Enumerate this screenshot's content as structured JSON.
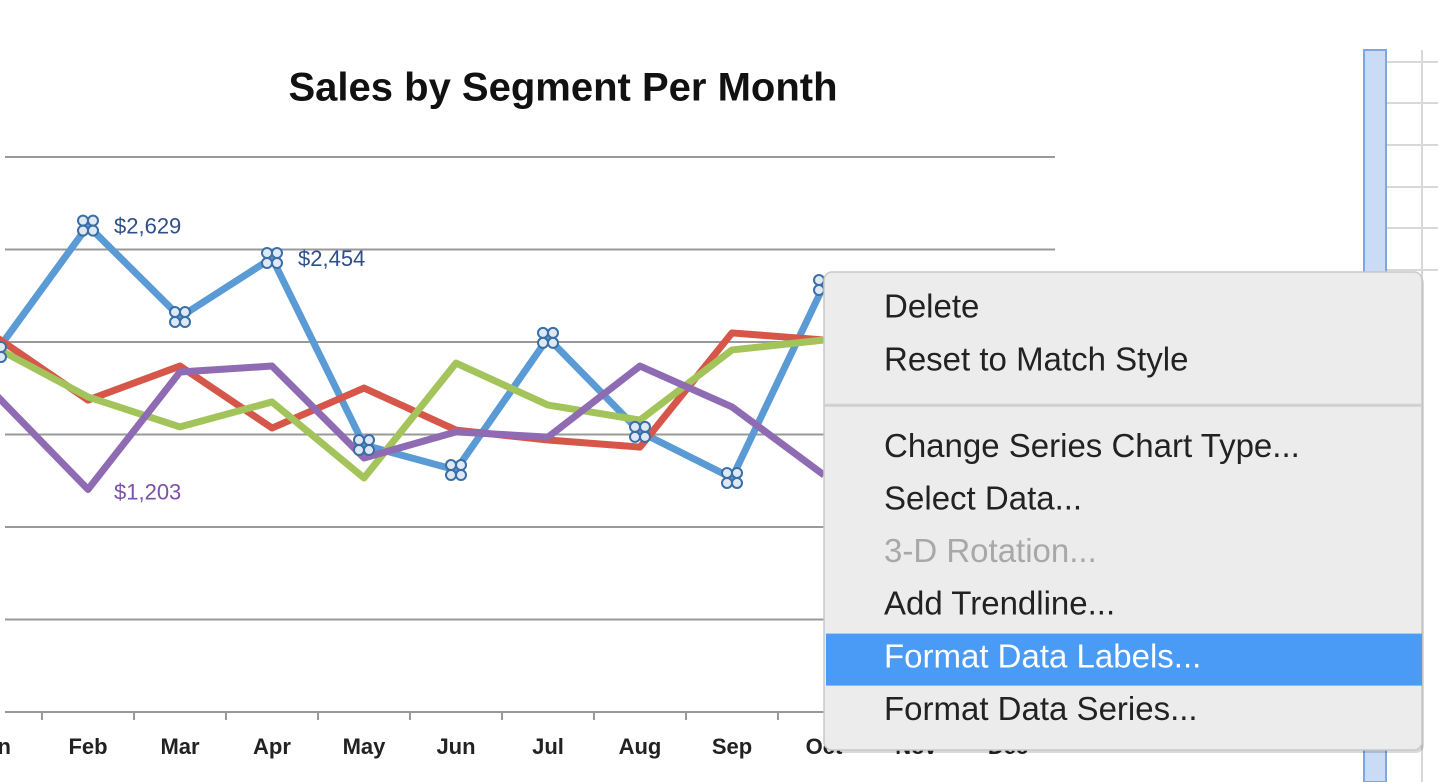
{
  "chart_data": {
    "type": "line",
    "title": "Sales by Segment Per Month",
    "categories": [
      "Jan",
      "Feb",
      "Mar",
      "Apr",
      "May",
      "Jun",
      "Jul",
      "Aug",
      "Sep",
      "Oct",
      "Nov",
      "Dec"
    ],
    "series": [
      {
        "color": "#5b9bd5",
        "values": [
          1946,
          2629,
          2135,
          2454,
          1443,
          1308,
          2022,
          1514,
          1265,
          2308,
          null,
          null
        ],
        "value_labels": [
          null,
          "$2,629",
          null,
          "$2,454",
          null,
          null,
          null,
          null,
          null,
          null,
          null,
          null
        ],
        "label_color": "#2f4f8a",
        "markers": true
      },
      {
        "color": "#d6574a",
        "values": [
          2027,
          1686,
          1870,
          1535,
          1751,
          1524,
          1470,
          1432,
          2049,
          2011,
          null,
          null
        ]
      },
      {
        "color": "#a3c45a",
        "values": [
          1968,
          1703,
          1541,
          1676,
          1265,
          1886,
          1659,
          1578,
          1957,
          2011,
          null,
          null
        ]
      },
      {
        "color": "#8e6bb3",
        "values": [
          1714,
          1203,
          1838,
          1870,
          1373,
          1514,
          1486,
          1870,
          1649,
          1281,
          null,
          null
        ],
        "value_labels": [
          null,
          "$1,203",
          null,
          null,
          null,
          null,
          null,
          null,
          null,
          null,
          null,
          null
        ],
        "label_color": "#7a52a8"
      }
    ],
    "ylim": [
      0,
      3000
    ],
    "yticks": [
      0,
      500,
      1000,
      1500,
      2000,
      2500,
      3000
    ],
    "grid": true
  },
  "menu": {
    "groups": [
      [
        {
          "label": "Delete"
        },
        {
          "label": "Reset to Match Style"
        }
      ],
      [
        {
          "label": "Change Series Chart Type..."
        },
        {
          "label": "Select Data..."
        },
        {
          "label": "3-D Rotation...",
          "state": "disabled"
        },
        {
          "label": "Add Trendline..."
        },
        {
          "label": "Format Data Labels...",
          "state": "highlighted"
        },
        {
          "label": "Format Data Series..."
        }
      ]
    ]
  }
}
